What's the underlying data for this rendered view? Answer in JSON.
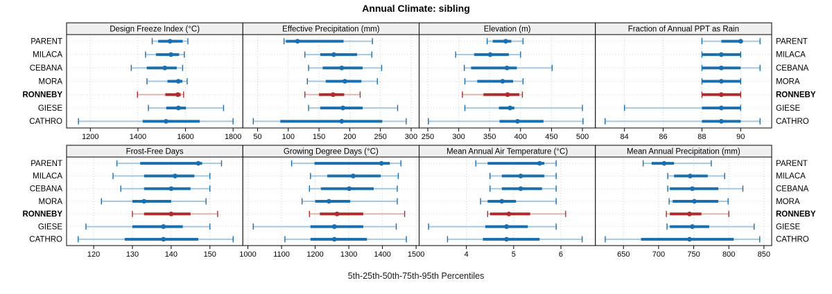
{
  "chart_data": {
    "type": "dotplot-percentile-trellis",
    "title": "Annual Climate: sibling",
    "xlabel": "5th-25th-50th-75th-95th Percentiles",
    "percentile_labels": [
      "5th",
      "25th",
      "50th",
      "75th",
      "95th"
    ],
    "categories": [
      "PARENT",
      "MILACA",
      "CEBANA",
      "MORA",
      "RONNEBY",
      "GIESE",
      "CATHRO"
    ],
    "highlight_category": "RONNEBY",
    "legend_position": "none",
    "grid": "dotted",
    "colors": {
      "normal_dark": "#1a6fae",
      "normal_light": "#a3c8e0",
      "highlight_dark": "#b02c2c",
      "highlight_light": "#e2b4b0",
      "strip_bg": "#f0f0f0",
      "panel_border": "#000000",
      "gridline": "#c9c9c9",
      "background": "#ffffff"
    },
    "panels": [
      {
        "title": "Design Freeze Index (°C)",
        "row": 0,
        "col": 0,
        "xlim": [
          1100,
          1841
        ],
        "ticks": [
          1200,
          1400,
          1600,
          1800
        ],
        "values": {
          "PARENT": [
            1460,
            1485,
            1535,
            1588,
            1610
          ],
          "MILACA": [
            1432,
            1476,
            1539,
            1573,
            1595
          ],
          "CEBANA": [
            1372,
            1437,
            1513,
            1563,
            1588
          ],
          "MORA": [
            1438,
            1524,
            1570,
            1587,
            1607
          ],
          "RONNEBY": [
            1398,
            1515,
            1568,
            1580,
            1592
          ],
          "GIESE": [
            1444,
            1519,
            1570,
            1602,
            1760
          ],
          "CATHRO": [
            1150,
            1420,
            1518,
            1660,
            1800
          ]
        }
      },
      {
        "title": "Effective Precipitation (mm)",
        "row": 0,
        "col": 1,
        "xlim": [
          26,
          313
        ],
        "ticks": [
          50,
          100,
          150,
          200,
          250,
          300
        ],
        "values": {
          "PARENT": [
            93,
            96,
            115,
            190,
            237
          ],
          "MILACA": [
            127,
            152,
            174,
            212,
            236
          ],
          "CEBANA": [
            133,
            156,
            187,
            221,
            252
          ],
          "MORA": [
            131,
            161,
            192,
            219,
            245
          ],
          "RONNEBY": [
            127,
            150,
            173,
            191,
            217
          ],
          "GIESE": [
            133,
            152,
            189,
            221,
            278
          ],
          "CATHRO": [
            43,
            87,
            187,
            253,
            292
          ]
        }
      },
      {
        "title": "Elevation (m)",
        "row": 0,
        "col": 2,
        "xlim": [
          236,
          521
        ],
        "ticks": [
          250,
          300,
          350,
          400,
          450,
          500
        ],
        "values": {
          "PARENT": [
            346,
            355,
            376,
            385,
            404
          ],
          "MILACA": [
            295,
            325,
            351,
            381,
            400
          ],
          "CEBANA": [
            309,
            320,
            378,
            394,
            451
          ],
          "MORA": [
            310,
            330,
            371,
            388,
            404
          ],
          "RONNEBY": [
            306,
            340,
            379,
            398,
            403
          ],
          "GIESE": [
            310,
            365,
            383,
            390,
            500
          ],
          "CATHRO": [
            251,
            366,
            395,
            437,
            501
          ]
        }
      },
      {
        "title": "Fraction of Annual PPT as Rain",
        "row": 0,
        "col": 3,
        "xlim": [
          82.5,
          91.6
        ],
        "ticks": [
          84,
          86,
          88,
          90
        ],
        "values": {
          "PARENT": [
            88,
            89,
            90,
            90,
            91
          ],
          "MILACA": [
            88,
            88,
            89,
            90,
            90
          ],
          "CEBANA": [
            88,
            88,
            89,
            90,
            91
          ],
          "MORA": [
            88,
            88,
            89,
            90,
            90
          ],
          "RONNEBY": [
            88,
            88,
            89,
            90,
            90
          ],
          "GIESE": [
            84,
            88,
            89,
            90,
            90
          ],
          "CATHRO": [
            83,
            88,
            89,
            90,
            91
          ]
        }
      },
      {
        "title": "Frost-Free Days",
        "row": 1,
        "col": 0,
        "xlim": [
          113,
          158.5
        ],
        "ticks": [
          120,
          130,
          140,
          150
        ],
        "values": {
          "PARENT": [
            126,
            132,
            147,
            148,
            153
          ],
          "MILACA": [
            125,
            133,
            141,
            146,
            150
          ],
          "CEBANA": [
            127,
            133,
            140,
            145,
            150
          ],
          "MORA": [
            122,
            130,
            133,
            140,
            149
          ],
          "RONNEBY": [
            130,
            133,
            140,
            145,
            152
          ],
          "GIESE": [
            118,
            130,
            138,
            143,
            150
          ],
          "CATHRO": [
            116,
            128,
            138,
            147,
            156
          ]
        }
      },
      {
        "title": "Growing Degree Days (°C)",
        "row": 1,
        "col": 1,
        "xlim": [
          985,
          1509
        ],
        "ticks": [
          1000,
          1100,
          1200,
          1300,
          1400,
          1500
        ],
        "values": {
          "PARENT": [
            1130,
            1198,
            1397,
            1422,
            1455
          ],
          "MILACA": [
            1186,
            1236,
            1313,
            1395,
            1447
          ],
          "CEBANA": [
            1183,
            1217,
            1301,
            1374,
            1444
          ],
          "MORA": [
            1161,
            1200,
            1241,
            1304,
            1444
          ],
          "RONNEBY": [
            1183,
            1214,
            1265,
            1343,
            1466
          ],
          "GIESE": [
            1016,
            1186,
            1257,
            1343,
            1441
          ],
          "CATHRO": [
            1110,
            1186,
            1257,
            1354,
            1471
          ]
        }
      },
      {
        "title": "Mean Annual Air Temperature (°C)",
        "row": 1,
        "col": 2,
        "xlim": [
          3.0,
          6.73
        ],
        "ticks": [
          4,
          5,
          6
        ],
        "values": {
          "PARENT": [
            4.2,
            4.45,
            5.55,
            5.65,
            5.9
          ],
          "MILACA": [
            4.5,
            4.75,
            5.15,
            5.65,
            5.9
          ],
          "CEBANA": [
            4.5,
            4.75,
            5.15,
            5.6,
            5.9
          ],
          "MORA": [
            4.3,
            4.45,
            4.75,
            5.05,
            5.9
          ],
          "RONNEBY": [
            4.45,
            4.5,
            4.9,
            5.35,
            6.1
          ],
          "GIESE": [
            3.2,
            4.4,
            4.85,
            5.3,
            5.9
          ],
          "CATHRO": [
            3.6,
            4.35,
            4.85,
            5.55,
            6.45
          ]
        }
      },
      {
        "title": "Mean Annual Precipitation (mm)",
        "row": 1,
        "col": 3,
        "xlim": [
          610,
          861
        ],
        "ticks": [
          650,
          700,
          750,
          800,
          850
        ],
        "values": {
          "PARENT": [
            678,
            690,
            708,
            722,
            775
          ],
          "MILACA": [
            713,
            722,
            745,
            770,
            794
          ],
          "CEBANA": [
            713,
            716,
            748,
            785,
            820
          ],
          "MORA": [
            715,
            720,
            751,
            785,
            799
          ],
          "RONNEBY": [
            711,
            716,
            744,
            761,
            800
          ],
          "GIESE": [
            712,
            716,
            748,
            772,
            836
          ],
          "CATHRO": [
            624,
            675,
            744,
            807,
            844
          ]
        }
      }
    ]
  }
}
